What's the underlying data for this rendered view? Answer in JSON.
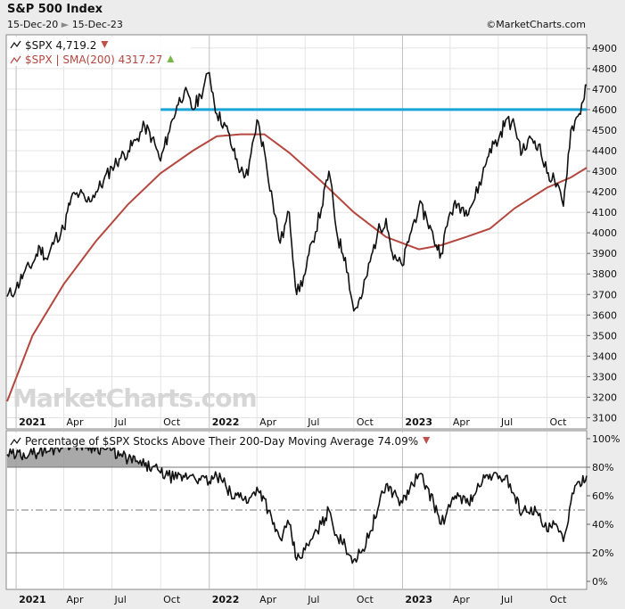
{
  "header": {
    "title": "S&P 500 Index",
    "date_range_start": "15-Dec-20",
    "date_range_end": "15-Dec-23",
    "copyright": "©MarketCharts.com"
  },
  "watermark": "MarketCharts.com",
  "colors": {
    "price": "#111111",
    "sma": "#b5473f",
    "resistance": "#1aa3d9",
    "down_marker": "#c0504d",
    "up_marker": "#7ab648",
    "breadth_fill": "#9a9a9a"
  },
  "chart_data": [
    {
      "type": "line",
      "title": "S&P 500 Index",
      "x_ticks": [
        "2021",
        "Apr",
        "Jul",
        "Oct",
        "2022",
        "Apr",
        "Jul",
        "Oct",
        "2023",
        "Apr",
        "Jul",
        "Oct"
      ],
      "y_ticks": [
        "3100",
        "3200",
        "3300",
        "3400",
        "3500",
        "3600",
        "3700",
        "3800",
        "3900",
        "4000",
        "4100",
        "4200",
        "4300",
        "4400",
        "4500",
        "4600",
        "4700",
        "4800",
        "4900"
      ],
      "ylim": [
        3050,
        4960
      ],
      "xlim": [
        "2020-12-15",
        "2023-12-15"
      ],
      "legend": [
        {
          "label": "$SPX 4,719.2",
          "marker": "down"
        },
        {
          "label": "$SPX | SMA(200) 4317.27",
          "marker": "up"
        }
      ],
      "horizontal_line": {
        "y": 4600,
        "from": "2021-10-01",
        "to": "2023-12-15"
      },
      "series": [
        {
          "name": "$SPX",
          "x": [
            "2020-12-15",
            "2021-01-01",
            "2021-01-15",
            "2021-02-01",
            "2021-02-15",
            "2021-03-01",
            "2021-03-15",
            "2021-04-01",
            "2021-04-15",
            "2021-05-01",
            "2021-05-15",
            "2021-06-01",
            "2021-06-15",
            "2021-07-01",
            "2021-07-15",
            "2021-08-01",
            "2021-08-15",
            "2021-09-01",
            "2021-09-15",
            "2021-10-01",
            "2021-10-15",
            "2021-11-01",
            "2021-11-15",
            "2021-12-01",
            "2021-12-15",
            "2022-01-01",
            "2022-01-15",
            "2022-02-01",
            "2022-02-15",
            "2022-03-01",
            "2022-03-15",
            "2022-04-01",
            "2022-04-15",
            "2022-05-01",
            "2022-05-15",
            "2022-06-01",
            "2022-06-15",
            "2022-07-01",
            "2022-07-15",
            "2022-08-01",
            "2022-08-15",
            "2022-09-01",
            "2022-09-15",
            "2022-10-01",
            "2022-10-15",
            "2022-11-01",
            "2022-11-15",
            "2022-12-01",
            "2022-12-15",
            "2023-01-01",
            "2023-01-15",
            "2023-02-01",
            "2023-02-15",
            "2023-03-01",
            "2023-03-15",
            "2023-04-01",
            "2023-04-15",
            "2023-05-01",
            "2023-05-15",
            "2023-06-01",
            "2023-06-15",
            "2023-07-01",
            "2023-07-15",
            "2023-08-01",
            "2023-08-15",
            "2023-09-01",
            "2023-09-15",
            "2023-10-01",
            "2023-10-15",
            "2023-11-01",
            "2023-11-15",
            "2023-12-01",
            "2023-12-15"
          ],
          "y": [
            3690,
            3730,
            3800,
            3850,
            3930,
            3870,
            3970,
            4020,
            4170,
            4190,
            4150,
            4200,
            4250,
            4320,
            4360,
            4400,
            4450,
            4520,
            4460,
            4350,
            4480,
            4620,
            4690,
            4600,
            4670,
            4780,
            4580,
            4520,
            4400,
            4300,
            4280,
            4550,
            4400,
            4150,
            3950,
            4100,
            3700,
            3800,
            3960,
            4120,
            4300,
            3970,
            3880,
            3620,
            3680,
            3860,
            4000,
            4070,
            3870,
            3840,
            3990,
            4130,
            4080,
            3970,
            3900,
            4100,
            4140,
            4110,
            4150,
            4280,
            4410,
            4450,
            4550,
            4520,
            4390,
            4460,
            4430,
            4290,
            4260,
            4130,
            4500,
            4580,
            4719
          ]
        },
        {
          "name": "$SPX | SMA(200)",
          "x": [
            "2020-12-15",
            "2021-02-01",
            "2021-04-01",
            "2021-06-01",
            "2021-08-01",
            "2021-10-01",
            "2021-12-01",
            "2022-01-15",
            "2022-03-01",
            "2022-04-15",
            "2022-06-01",
            "2022-08-01",
            "2022-10-01",
            "2022-12-01",
            "2023-02-01",
            "2023-03-15",
            "2023-05-01",
            "2023-06-15",
            "2023-08-01",
            "2023-10-01",
            "2023-11-15",
            "2023-12-15"
          ],
          "y": [
            3180,
            3500,
            3750,
            3960,
            4140,
            4290,
            4400,
            4470,
            4480,
            4480,
            4390,
            4250,
            4100,
            3980,
            3920,
            3940,
            3980,
            4020,
            4120,
            4220,
            4270,
            4317
          ]
        }
      ]
    },
    {
      "type": "area",
      "title": "Percentage of $SPX Stocks Above Their 200-Day Moving Average 74.09%",
      "x_ticks": [
        "2021",
        "Apr",
        "Jul",
        "Oct",
        "2022",
        "Apr",
        "Jul",
        "Oct",
        "2023",
        "Apr",
        "Jul",
        "Oct"
      ],
      "y_ticks": [
        "0%",
        "20%",
        "40%",
        "60%",
        "80%",
        "100%"
      ],
      "ylim": [
        -5,
        105
      ],
      "xlim": [
        "2020-12-15",
        "2023-12-15"
      ],
      "reference_lines": [
        20,
        50,
        80
      ],
      "legend": [
        {
          "label": "Percentage of $SPX Stocks Above Their 200-Day Moving Average 74.09%",
          "marker": "down"
        }
      ],
      "series": [
        {
          "name": "Percentage of $SPX Stocks Above Their 200-Day Moving Average",
          "x": [
            "2020-12-15",
            "2021-01-01",
            "2021-01-15",
            "2021-02-01",
            "2021-02-15",
            "2021-03-01",
            "2021-03-15",
            "2021-04-01",
            "2021-04-15",
            "2021-05-01",
            "2021-05-15",
            "2021-06-01",
            "2021-06-15",
            "2021-07-01",
            "2021-07-15",
            "2021-08-01",
            "2021-08-15",
            "2021-09-01",
            "2021-09-15",
            "2021-10-01",
            "2021-10-15",
            "2021-11-01",
            "2021-11-15",
            "2021-12-01",
            "2021-12-15",
            "2022-01-01",
            "2022-01-15",
            "2022-02-01",
            "2022-02-15",
            "2022-03-01",
            "2022-03-15",
            "2022-04-01",
            "2022-04-15",
            "2022-05-01",
            "2022-05-15",
            "2022-06-01",
            "2022-06-15",
            "2022-07-01",
            "2022-07-15",
            "2022-08-01",
            "2022-08-15",
            "2022-09-01",
            "2022-09-15",
            "2022-10-01",
            "2022-10-15",
            "2022-11-01",
            "2022-11-15",
            "2022-12-01",
            "2022-12-15",
            "2023-01-01",
            "2023-01-15",
            "2023-02-01",
            "2023-02-15",
            "2023-03-01",
            "2023-03-15",
            "2023-04-01",
            "2023-04-15",
            "2023-05-01",
            "2023-05-15",
            "2023-06-01",
            "2023-06-15",
            "2023-07-01",
            "2023-07-15",
            "2023-08-01",
            "2023-08-15",
            "2023-09-01",
            "2023-09-15",
            "2023-10-01",
            "2023-10-15",
            "2023-11-01",
            "2023-11-15",
            "2023-12-01",
            "2023-12-15"
          ],
          "y": [
            89,
            88,
            90,
            89,
            92,
            91,
            93,
            96,
            97,
            96,
            95,
            94,
            93,
            92,
            88,
            86,
            84,
            81,
            80,
            76,
            74,
            72,
            73,
            75,
            71,
            70,
            74,
            67,
            58,
            62,
            55,
            66,
            58,
            40,
            30,
            40,
            15,
            22,
            30,
            40,
            50,
            30,
            25,
            15,
            20,
            35,
            50,
            68,
            62,
            55,
            65,
            75,
            67,
            55,
            40,
            52,
            62,
            55,
            60,
            70,
            75,
            72,
            74,
            60,
            48,
            52,
            46,
            35,
            40,
            28,
            55,
            70,
            74
          ]
        }
      ]
    }
  ]
}
